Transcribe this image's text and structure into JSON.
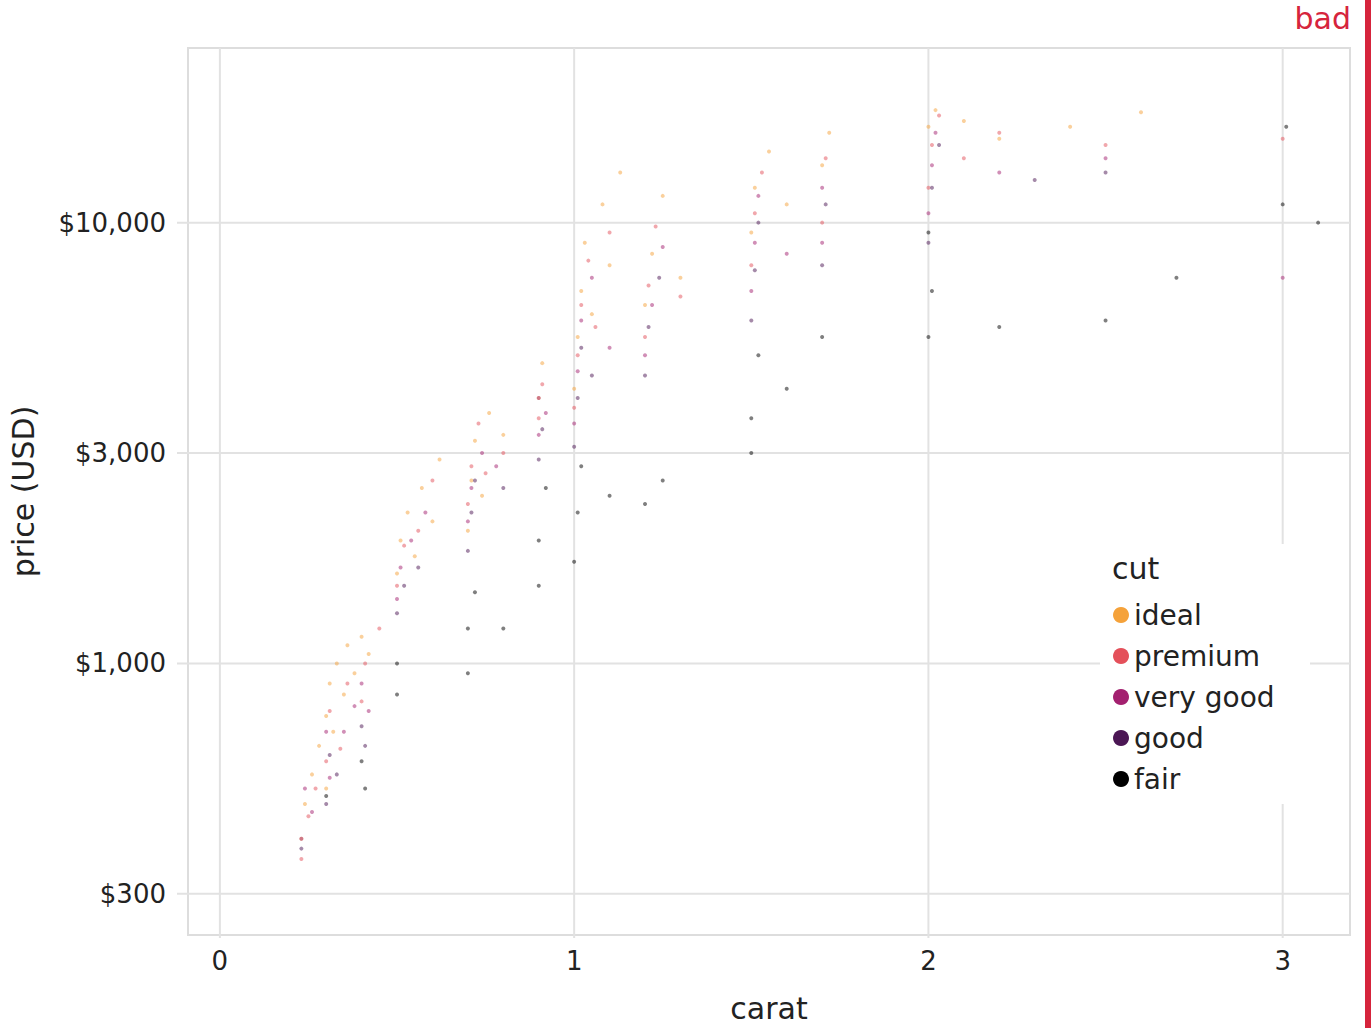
{
  "chart_data": {
    "type": "scatter",
    "annotation": "bad",
    "x_label": "carat",
    "y_label": "price (USD)",
    "legend_title": "cut",
    "log": "y",
    "grid": true,
    "legend": "right",
    "marker": "circle",
    "xlim": [
      -0.09,
      3.19
    ],
    "xticks": [
      0,
      1,
      2,
      3
    ],
    "ylim": [
      242,
      24900
    ],
    "yticks": [
      {
        "value": 300,
        "label": "$300"
      },
      {
        "value": 1000,
        "label": "$1,000"
      },
      {
        "value": 3000,
        "label": "$3,000"
      },
      {
        "value": 10000,
        "label": "$10,000"
      }
    ],
    "series": [
      {
        "name": "ideal",
        "color": "#f5a23a",
        "x": [
          0.23,
          0.24,
          0.26,
          0.28,
          0.3,
          0.3,
          0.31,
          0.32,
          0.33,
          0.35,
          0.36,
          0.38,
          0.4,
          0.42,
          0.5,
          0.51,
          0.53,
          0.55,
          0.57,
          0.6,
          0.62,
          0.7,
          0.71,
          0.72,
          0.74,
          0.76,
          0.8,
          0.9,
          0.91,
          1.0,
          1.01,
          1.02,
          1.03,
          1.05,
          1.08,
          1.1,
          1.13,
          1.2,
          1.22,
          1.25,
          1.3,
          1.5,
          1.51,
          1.55,
          1.6,
          1.7,
          1.72,
          2.0,
          2.02,
          2.1,
          2.2,
          2.4,
          2.6
        ],
        "values": [
          400,
          480,
          560,
          650,
          520,
          760,
          900,
          700,
          1000,
          850,
          1100,
          950,
          1150,
          1050,
          1600,
          1900,
          2200,
          1750,
          2500,
          2100,
          2900,
          2000,
          2600,
          3200,
          2400,
          3700,
          3300,
          4000,
          4800,
          4200,
          5500,
          7000,
          9000,
          6200,
          11000,
          8000,
          13000,
          6500,
          8500,
          11500,
          7500,
          9500,
          12000,
          14500,
          11000,
          13500,
          16000,
          16500,
          18000,
          17000,
          15500,
          16500,
          17800
        ]
      },
      {
        "name": "premium",
        "color": "#e4505a",
        "x": [
          0.23,
          0.25,
          0.27,
          0.3,
          0.31,
          0.34,
          0.36,
          0.4,
          0.41,
          0.45,
          0.5,
          0.52,
          0.56,
          0.6,
          0.7,
          0.71,
          0.73,
          0.75,
          0.8,
          0.9,
          0.91,
          1.0,
          1.01,
          1.02,
          1.04,
          1.06,
          1.1,
          1.2,
          1.21,
          1.23,
          1.3,
          1.5,
          1.51,
          1.53,
          1.7,
          1.71,
          2.0,
          2.01,
          2.03,
          2.1,
          2.2,
          2.5,
          3.0
        ],
        "values": [
          360,
          450,
          520,
          600,
          780,
          640,
          900,
          820,
          1000,
          1200,
          1500,
          1850,
          2000,
          2600,
          2300,
          2800,
          3500,
          2700,
          3000,
          3600,
          4300,
          3800,
          5000,
          6500,
          8200,
          5800,
          9500,
          5500,
          7200,
          9800,
          6800,
          8000,
          10500,
          13000,
          10000,
          14000,
          12000,
          15000,
          17500,
          14000,
          16000,
          15000,
          15500
        ]
      },
      {
        "name": "very good",
        "color": "#a3206f",
        "x": [
          0.23,
          0.24,
          0.26,
          0.3,
          0.31,
          0.35,
          0.38,
          0.4,
          0.42,
          0.5,
          0.51,
          0.54,
          0.58,
          0.7,
          0.71,
          0.74,
          0.78,
          0.9,
          0.9,
          0.92,
          1.0,
          1.01,
          1.02,
          1.05,
          1.1,
          1.2,
          1.22,
          1.25,
          1.5,
          1.51,
          1.52,
          1.6,
          1.7,
          1.7,
          2.0,
          2.01,
          2.02,
          2.2,
          2.5,
          3.0
        ],
        "values": [
          400,
          520,
          460,
          700,
          550,
          700,
          800,
          900,
          780,
          1400,
          1650,
          1900,
          2200,
          2100,
          2500,
          3000,
          2800,
          3300,
          4000,
          3700,
          3500,
          4600,
          6000,
          7500,
          5200,
          5000,
          6500,
          8800,
          7000,
          9000,
          11500,
          8500,
          9000,
          12000,
          10500,
          13500,
          16000,
          13000,
          14000,
          7500
        ]
      },
      {
        "name": "good",
        "color": "#4b1654",
        "x": [
          0.23,
          0.3,
          0.31,
          0.33,
          0.4,
          0.41,
          0.5,
          0.52,
          0.56,
          0.7,
          0.71,
          0.72,
          0.8,
          0.9,
          0.91,
          1.0,
          1.01,
          1.02,
          1.05,
          1.2,
          1.21,
          1.24,
          1.5,
          1.51,
          1.52,
          1.7,
          1.71,
          2.0,
          2.01,
          2.03,
          2.3,
          2.5
        ],
        "values": [
          380,
          480,
          620,
          560,
          720,
          650,
          1300,
          1500,
          1650,
          1800,
          2200,
          2600,
          2500,
          2900,
          3400,
          3100,
          4000,
          5200,
          4500,
          4500,
          5800,
          7500,
          6000,
          7800,
          10000,
          8000,
          11000,
          9000,
          12000,
          15000,
          12500,
          13000
        ]
      },
      {
        "name": "fair",
        "color": "#000000",
        "x": [
          0.3,
          0.4,
          0.41,
          0.5,
          0.5,
          0.7,
          0.7,
          0.72,
          0.8,
          0.9,
          0.9,
          0.92,
          1.0,
          1.01,
          1.02,
          1.1,
          1.2,
          1.25,
          1.5,
          1.5,
          1.52,
          1.6,
          1.7,
          2.0,
          2.01,
          2.0,
          2.2,
          2.5,
          2.7,
          3.0,
          3.01,
          3.1
        ],
        "values": [
          500,
          600,
          520,
          850,
          1000,
          950,
          1200,
          1450,
          1200,
          1500,
          1900,
          2500,
          1700,
          2200,
          2800,
          2400,
          2300,
          2600,
          3000,
          3600,
          5000,
          4200,
          5500,
          5500,
          7000,
          9500,
          5800,
          6000,
          7500,
          11000,
          16500,
          10000
        ]
      }
    ]
  }
}
